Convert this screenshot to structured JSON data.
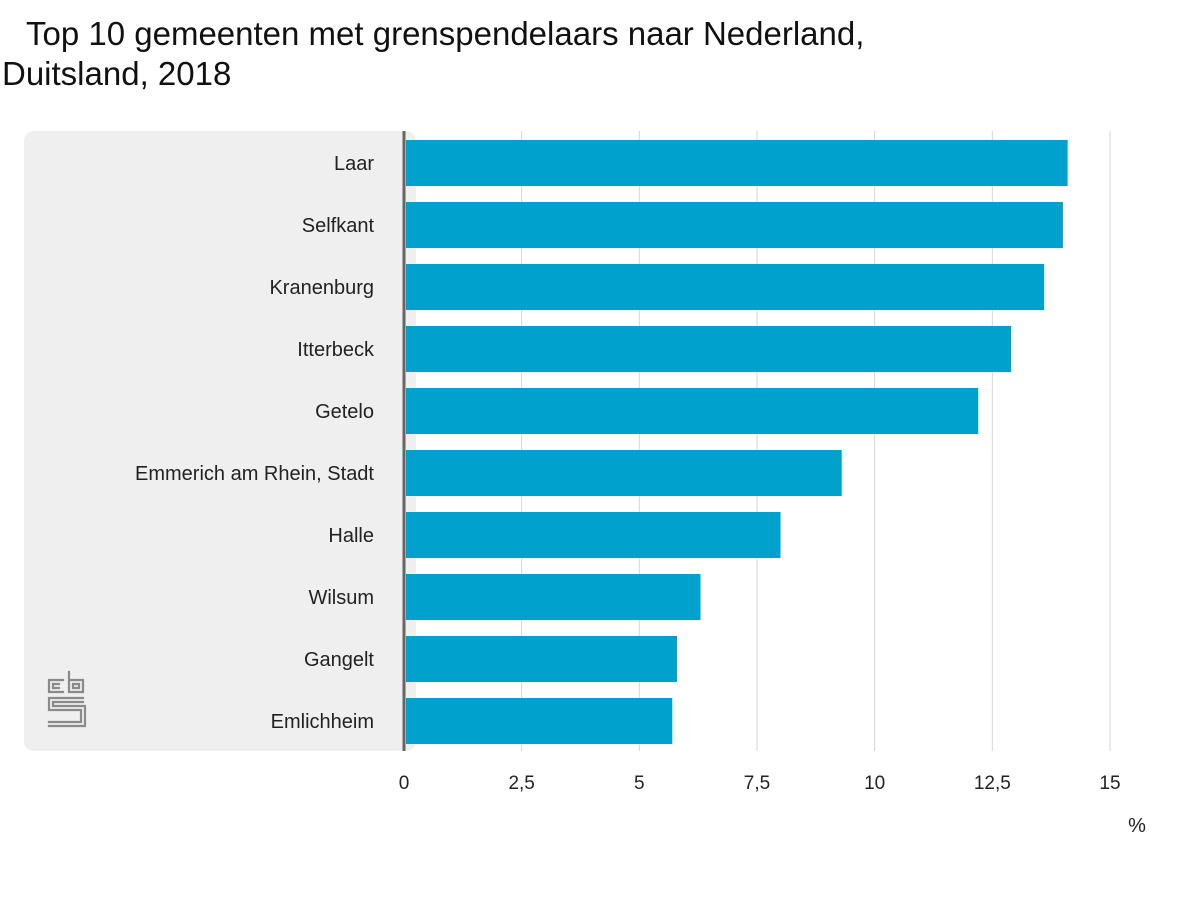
{
  "chart_data": {
    "type": "bar",
    "orientation": "horizontal",
    "title": "Top 10 gemeenten met grenspendelaars naar Nederland, Duitsland, 2018",
    "categories": [
      "Laar",
      "Selfkant",
      "Kranenburg",
      "Itterbeck",
      "Getelo",
      "Emmerich am Rhein, Stadt",
      "Halle",
      "Wilsum",
      "Gangelt",
      "Emlichheim"
    ],
    "values": [
      14.1,
      14.0,
      13.6,
      12.9,
      12.2,
      9.3,
      8.0,
      6.3,
      5.8,
      5.7
    ],
    "xlim": [
      0,
      15
    ],
    "xticks": [
      "0",
      "2,5",
      "5",
      "7,5",
      "10",
      "12,5",
      "15"
    ],
    "xtick_values": [
      0,
      2.5,
      5,
      7.5,
      10,
      12.5,
      15
    ],
    "unit": "%",
    "grid": true,
    "bar_color": "#00a1cd",
    "label_panel_color": "#efefef",
    "axis_color": "#666666"
  },
  "logo": {
    "icon": "cbs-logo-icon",
    "text": "cbs"
  }
}
